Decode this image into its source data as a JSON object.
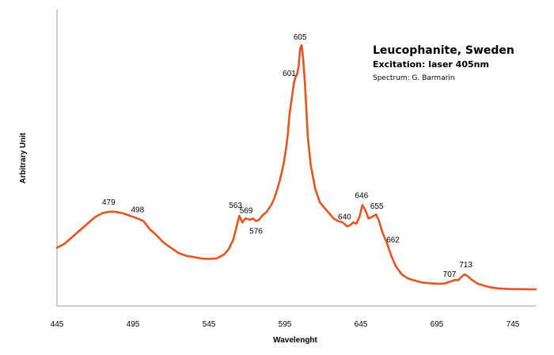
{
  "chart_data": {
    "type": "line",
    "title": "Leucophanite, Sweden",
    "subtitle": "Excitation: laser 405nm",
    "credit": "Spectrum: G. Barmarin",
    "xlabel": "Wavelenght",
    "ylabel": "Arbitrary Unit",
    "xlim": [
      445,
      775
    ],
    "ylim": [
      0,
      100
    ],
    "xticks": [
      445,
      495,
      545,
      595,
      645,
      695,
      745
    ],
    "grid": false,
    "legend": "none",
    "line_color": "#E8531E",
    "series": [
      {
        "x": [
          445,
          450,
          455,
          460,
          465,
          470,
          475,
          479,
          483,
          488,
          493,
          498,
          502,
          506,
          510,
          515,
          520,
          525,
          530,
          535,
          540,
          545,
          550,
          555,
          558,
          561,
          563,
          565,
          567,
          569,
          572,
          574,
          576,
          578,
          580,
          583,
          586,
          588,
          590,
          592,
          594,
          596,
          597,
          598,
          600,
          601,
          602,
          603,
          604,
          605,
          606,
          607,
          608,
          609,
          610,
          612,
          615,
          618,
          621,
          624,
          627,
          630,
          633,
          636,
          638,
          640,
          642,
          644,
          646,
          648,
          650,
          652,
          655,
          657,
          659,
          662,
          665,
          668,
          672,
          676,
          680,
          685,
          690,
          695,
          700,
          703,
          705,
          707,
          709,
          711,
          713,
          715,
          718,
          722,
          726,
          730,
          735,
          740,
          745,
          750,
          760,
          770,
          775
        ],
        "y": [
          22,
          23.5,
          26,
          28.5,
          31,
          33.5,
          35,
          35.5,
          35.5,
          35,
          34,
          33,
          32,
          29,
          27,
          24,
          22,
          20,
          19,
          18.5,
          18,
          17.8,
          18,
          19.5,
          21.5,
          25,
          29.5,
          34,
          31.5,
          33,
          32.5,
          33,
          32,
          32.5,
          34,
          35.5,
          38,
          40.5,
          44,
          48,
          53,
          60,
          65,
          72,
          80,
          84,
          86,
          87,
          90,
          96.5,
          98,
          93,
          85,
          75,
          64,
          53,
          44,
          39,
          37,
          35,
          33,
          32,
          31.5,
          30,
          30.5,
          31.5,
          31,
          33.5,
          38,
          36,
          33,
          33.5,
          34.5,
          32,
          28,
          24,
          19,
          15,
          12,
          10.5,
          9.8,
          9,
          8.7,
          8.5,
          8.6,
          9.2,
          9.5,
          10,
          9.8,
          11,
          12,
          11.5,
          10,
          8.5,
          7.8,
          7.2,
          6.8,
          6.6,
          6.5,
          6.5,
          6.4,
          6.4,
          6.4
        ]
      }
    ],
    "annotations": [
      {
        "text": "479",
        "x": 479,
        "y": 35.5
      },
      {
        "text": "498",
        "x": 498,
        "y": 33
      },
      {
        "text": "563",
        "x": 563,
        "y": 34
      },
      {
        "text": "569",
        "x": 569,
        "y": 33
      },
      {
        "text": "576",
        "x": 576,
        "y": 32
      },
      {
        "text": "601",
        "x": 601,
        "y": 84
      },
      {
        "text": "605",
        "x": 605,
        "y": 98
      },
      {
        "text": "640",
        "x": 640,
        "y": 31.5
      },
      {
        "text": "646",
        "x": 646,
        "y": 38
      },
      {
        "text": "655",
        "x": 655,
        "y": 34.5
      },
      {
        "text": "662",
        "x": 662,
        "y": 24
      },
      {
        "text": "707",
        "x": 707,
        "y": 10
      },
      {
        "text": "713",
        "x": 713,
        "y": 12
      }
    ]
  }
}
